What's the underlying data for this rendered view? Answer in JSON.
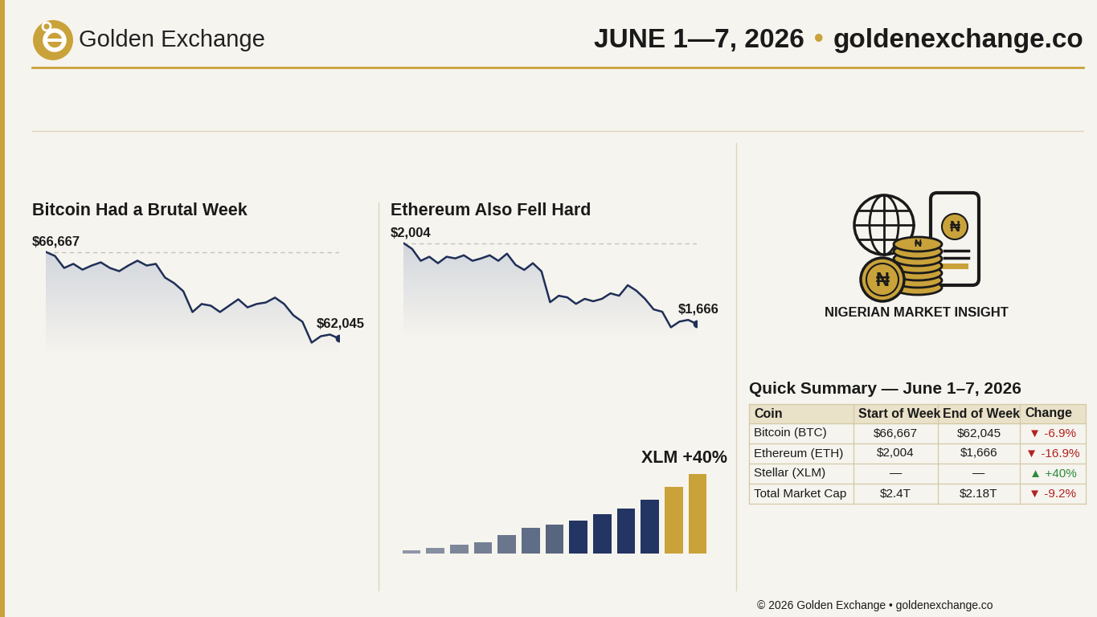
{
  "header": {
    "brand": "Golden Exchange",
    "date": "JUNE 1—7, 2026",
    "separator": "•",
    "site": "goldenexchange.co"
  },
  "chart_data": [
    {
      "type": "line",
      "title": "Bitcoin Had a Brutal Week",
      "color": "#1f2f57",
      "tick_labels": false,
      "start_label": "$66,667",
      "end_label": "$62,045",
      "values": [
        66667,
        66450,
        65810,
        66030,
        65720,
        65940,
        66110,
        65810,
        65640,
        65940,
        66200,
        65940,
        66030,
        65300,
        65000,
        64570,
        63460,
        63890,
        63800,
        63460,
        63800,
        64140,
        63710,
        63890,
        63970,
        64230,
        63890,
        63290,
        62940,
        61830,
        62170,
        62260,
        62045
      ]
    },
    {
      "type": "line",
      "title": "Ethereum Also Fell Hard",
      "color": "#1f2f57",
      "tick_labels": false,
      "start_label": "$2,004",
      "end_label": "$1,666",
      "values": [
        2004,
        1980,
        1930,
        1947,
        1920,
        1947,
        1940,
        1953,
        1930,
        1940,
        1953,
        1930,
        1960,
        1913,
        1892,
        1920,
        1886,
        1757,
        1784,
        1777,
        1750,
        1771,
        1761,
        1771,
        1794,
        1784,
        1828,
        1805,
        1771,
        1727,
        1717,
        1652,
        1676,
        1683,
        1666
      ]
    },
    {
      "type": "bar",
      "title": "XLM +40%",
      "tick_labels": false,
      "values": [
        4,
        7,
        11,
        14,
        23,
        32,
        36,
        41,
        49,
        56,
        67,
        83,
        99
      ],
      "colors": [
        "#8f97a6",
        "#8690a0",
        "#7d879a",
        "#747f93",
        "#6a768c",
        "#606d86",
        "#57657f",
        "#233563",
        "#233563",
        "#233563",
        "#233563",
        "#c9a23a",
        "#c9a23a"
      ]
    }
  ],
  "insight": {
    "symbol": "₦",
    "label": "NIGERIAN MARKET INSIGHT"
  },
  "table": {
    "title": "Quick Summary — June 1–7, 2026",
    "columns": [
      "Coin",
      "Start of Week",
      "End of Week",
      "Change"
    ],
    "rows": [
      [
        "Bitcoin (BTC)",
        "$66,667",
        "$62,045",
        "▼ -6.9%"
      ],
      [
        "Ethereum (ETH)",
        "$2,004",
        "$1,666",
        "▼ -16.9%"
      ],
      [
        "Stellar (XLM)",
        "—",
        "—",
        "▲ +40%"
      ],
      [
        "Total Market Cap",
        "$2.4T",
        "$2.18T",
        "▼ -9.2%"
      ]
    ]
  },
  "footer": "© 2026 Golden Exchange • goldenexchange.co"
}
